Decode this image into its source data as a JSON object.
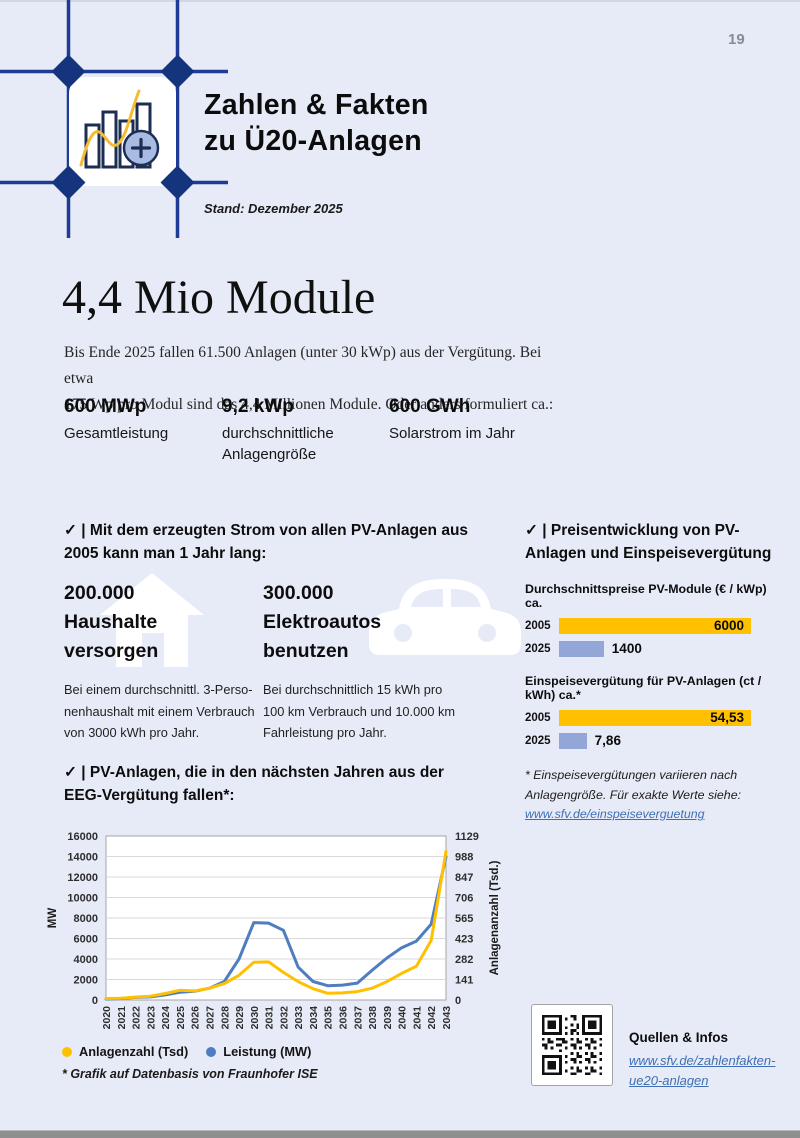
{
  "page": {
    "number": "19"
  },
  "colors": {
    "background": "#E7EBF7",
    "navy_line": "#1E3C96",
    "navy_diamond": "#14347E",
    "yellow": "#FFC000",
    "bar_blue": "#92A7D7",
    "line_blue": "#4E7DC0",
    "link_blue": "#3F6FB5",
    "page_number_gray": "#868B94"
  },
  "header": {
    "title_line1": "Zahlen & Fakten",
    "title_line2": "zu Ü20-Anlagen",
    "stand": "Stand: Dezember 2025",
    "logo_icon": "bar-chart-with-plus-icon"
  },
  "intro": {
    "headline": "4,4 Mio Module",
    "body_line1": "Bis Ende 2025 fallen 61.500 Anlagen (unter 30 kWp) aus der Vergütung. Bei etwa",
    "body_line2": "175 Wp pro Modul sind das 4,4 Millionen Module. Oder anders formuliert ca.:",
    "stats": [
      {
        "value": "600 MWp",
        "label": "Gesamtleistung"
      },
      {
        "value": "9,2 kWp",
        "label": "durchschnittliche Anlagengröße"
      },
      {
        "value": "600 GWh",
        "label": "Solarstrom im Jahr"
      }
    ]
  },
  "usage": {
    "heading_line1": "✓ | Mit dem erzeugten Strom von allen PV-Anlagen aus",
    "heading_line2": "2005 kann man 1 Jahr lang:",
    "items": [
      {
        "icon": "house-icon",
        "title_lines": [
          "200.000",
          "Haushalte",
          "versorgen"
        ],
        "desc_lines": [
          "Bei einem durchschnittl. 3-Perso-",
          "nenhaushalt mit einem Verbrauch",
          "von 3000 kWh pro Jahr."
        ]
      },
      {
        "icon": "car-icon",
        "title_lines": [
          "300.000",
          "Elektroautos",
          "benutzen"
        ],
        "desc_lines": [
          "Bei durchschnittlich 15 kWh pro",
          "100 km Verbrauch und 10.000 km",
          "Fahrleistung pro Jahr."
        ]
      }
    ]
  },
  "price": {
    "heading_line1": "✓ | Preisentwicklung von PV-",
    "heading_line2": "Anlagen und Einspeisevergütung",
    "footnote_line1": "* Einspeisevergütungen variieren nach",
    "footnote_line2": "Anlagengröße. Für exakte Werte siehe:",
    "link": "www.sfv.de/einspeiseverguetung"
  },
  "eeg": {
    "heading_line1": "✓ | PV-Anlagen, die in den nächsten Jahren aus der",
    "heading_line2": "EEG-Vergütung fallen*:",
    "footnote": "* Grafik auf Datenbasis von Fraunhofer ISE"
  },
  "sources": {
    "title": "Quellen & Infos",
    "link_line1": "www.sfv.de/zahlenfakten-",
    "link_line2": "ue20-anlagen"
  },
  "chart_data": [
    {
      "type": "bar",
      "orientation": "horizontal",
      "title": "Durchschnittspreise PV-Module (€ / kWp) ca.",
      "categories": [
        "2005",
        "2025"
      ],
      "values": [
        6000,
        1400
      ],
      "value_labels": [
        "6000",
        "1400"
      ],
      "colors": [
        "#FFC000",
        "#92A7D7"
      ],
      "xlim": [
        0,
        6000
      ]
    },
    {
      "type": "bar",
      "orientation": "horizontal",
      "title": "Einspeisevergütung für PV-Anlagen (ct / kWh) ca.*",
      "categories": [
        "2005",
        "2025"
      ],
      "values": [
        54.53,
        7.86
      ],
      "value_labels": [
        "54,53",
        "7,86"
      ],
      "colors": [
        "#FFC000",
        "#92A7D7"
      ],
      "xlim": [
        0,
        54.53
      ]
    },
    {
      "type": "line",
      "title": "PV-Anlagen, die in den nächsten Jahren aus der EEG-Vergütung fallen*",
      "x": [
        "2020",
        "2021",
        "2022",
        "2023",
        "2024",
        "2025",
        "2026",
        "2027",
        "2028",
        "2029",
        "2030",
        "2031",
        "2032",
        "2033",
        "2034",
        "2035",
        "2036",
        "2037",
        "2038",
        "2039",
        "2040",
        "2041",
        "2042",
        "2043"
      ],
      "ylabel_left": "MW",
      "ylabel_right": "Anlagenanzahl (Tsd.)",
      "ylim_left": [
        0,
        16000
      ],
      "ylim_right": [
        0,
        1129
      ],
      "yticks_left": [
        16000,
        14000,
        12000,
        10000,
        8000,
        6000,
        4000,
        2000,
        0
      ],
      "yticks_right": [
        1129,
        988,
        847,
        706,
        565,
        423,
        282,
        141,
        0
      ],
      "grid": true,
      "legend_position": "bottom",
      "series": [
        {
          "name": "Anlagenzahl (Tsd)",
          "axis": "right",
          "color": "#FFC000",
          "values": [
            10,
            12,
            20,
            26,
            45,
            67,
            62,
            81,
            113,
            170,
            260,
            262,
            190,
            127,
            78,
            46,
            49,
            58,
            81,
            127,
            183,
            233,
            410,
            1023
          ]
        },
        {
          "name": "Leistung (MW)",
          "axis": "left",
          "color": "#4E7DC0",
          "values": [
            100,
            150,
            250,
            300,
            500,
            750,
            850,
            1150,
            1800,
            4000,
            7550,
            7500,
            6800,
            3200,
            1800,
            1400,
            1450,
            1650,
            2900,
            4100,
            5100,
            5750,
            7400,
            14000
          ]
        }
      ]
    }
  ]
}
